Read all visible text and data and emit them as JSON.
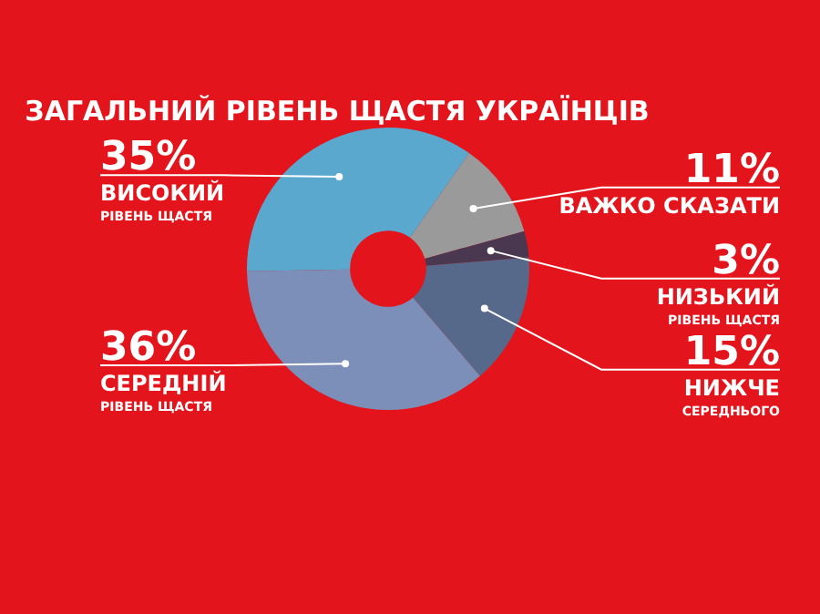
{
  "chart_data": {
    "type": "donut",
    "title": "ЗАГАЛЬНИЙ РІВЕНЬ ЩАСТЯ УКРАЇНЦІВ",
    "categories": [
      "ВАЖКО СКАЗАТИ",
      "НИЗЬКИЙ\nРІВЕНЬ ЩАСТЯ",
      "НИЖЧЕ\nСЕРЕДНЬОГО",
      "СЕРЕДНІЙ\nРІВЕНЬ ЩАСТЯ",
      "ВИСОКИЙ\nРІВЕНЬ ЩАСТЯ"
    ],
    "values": [
      11,
      3,
      15,
      36,
      35
    ],
    "value_labels": [
      "11%",
      "3%",
      "15%",
      "36%",
      "35%"
    ],
    "colors": [
      "#9a9a9a",
      "#4a3850",
      "#56698a",
      "#7b8fb8",
      "#5ba8cf"
    ],
    "legend": false
  }
}
